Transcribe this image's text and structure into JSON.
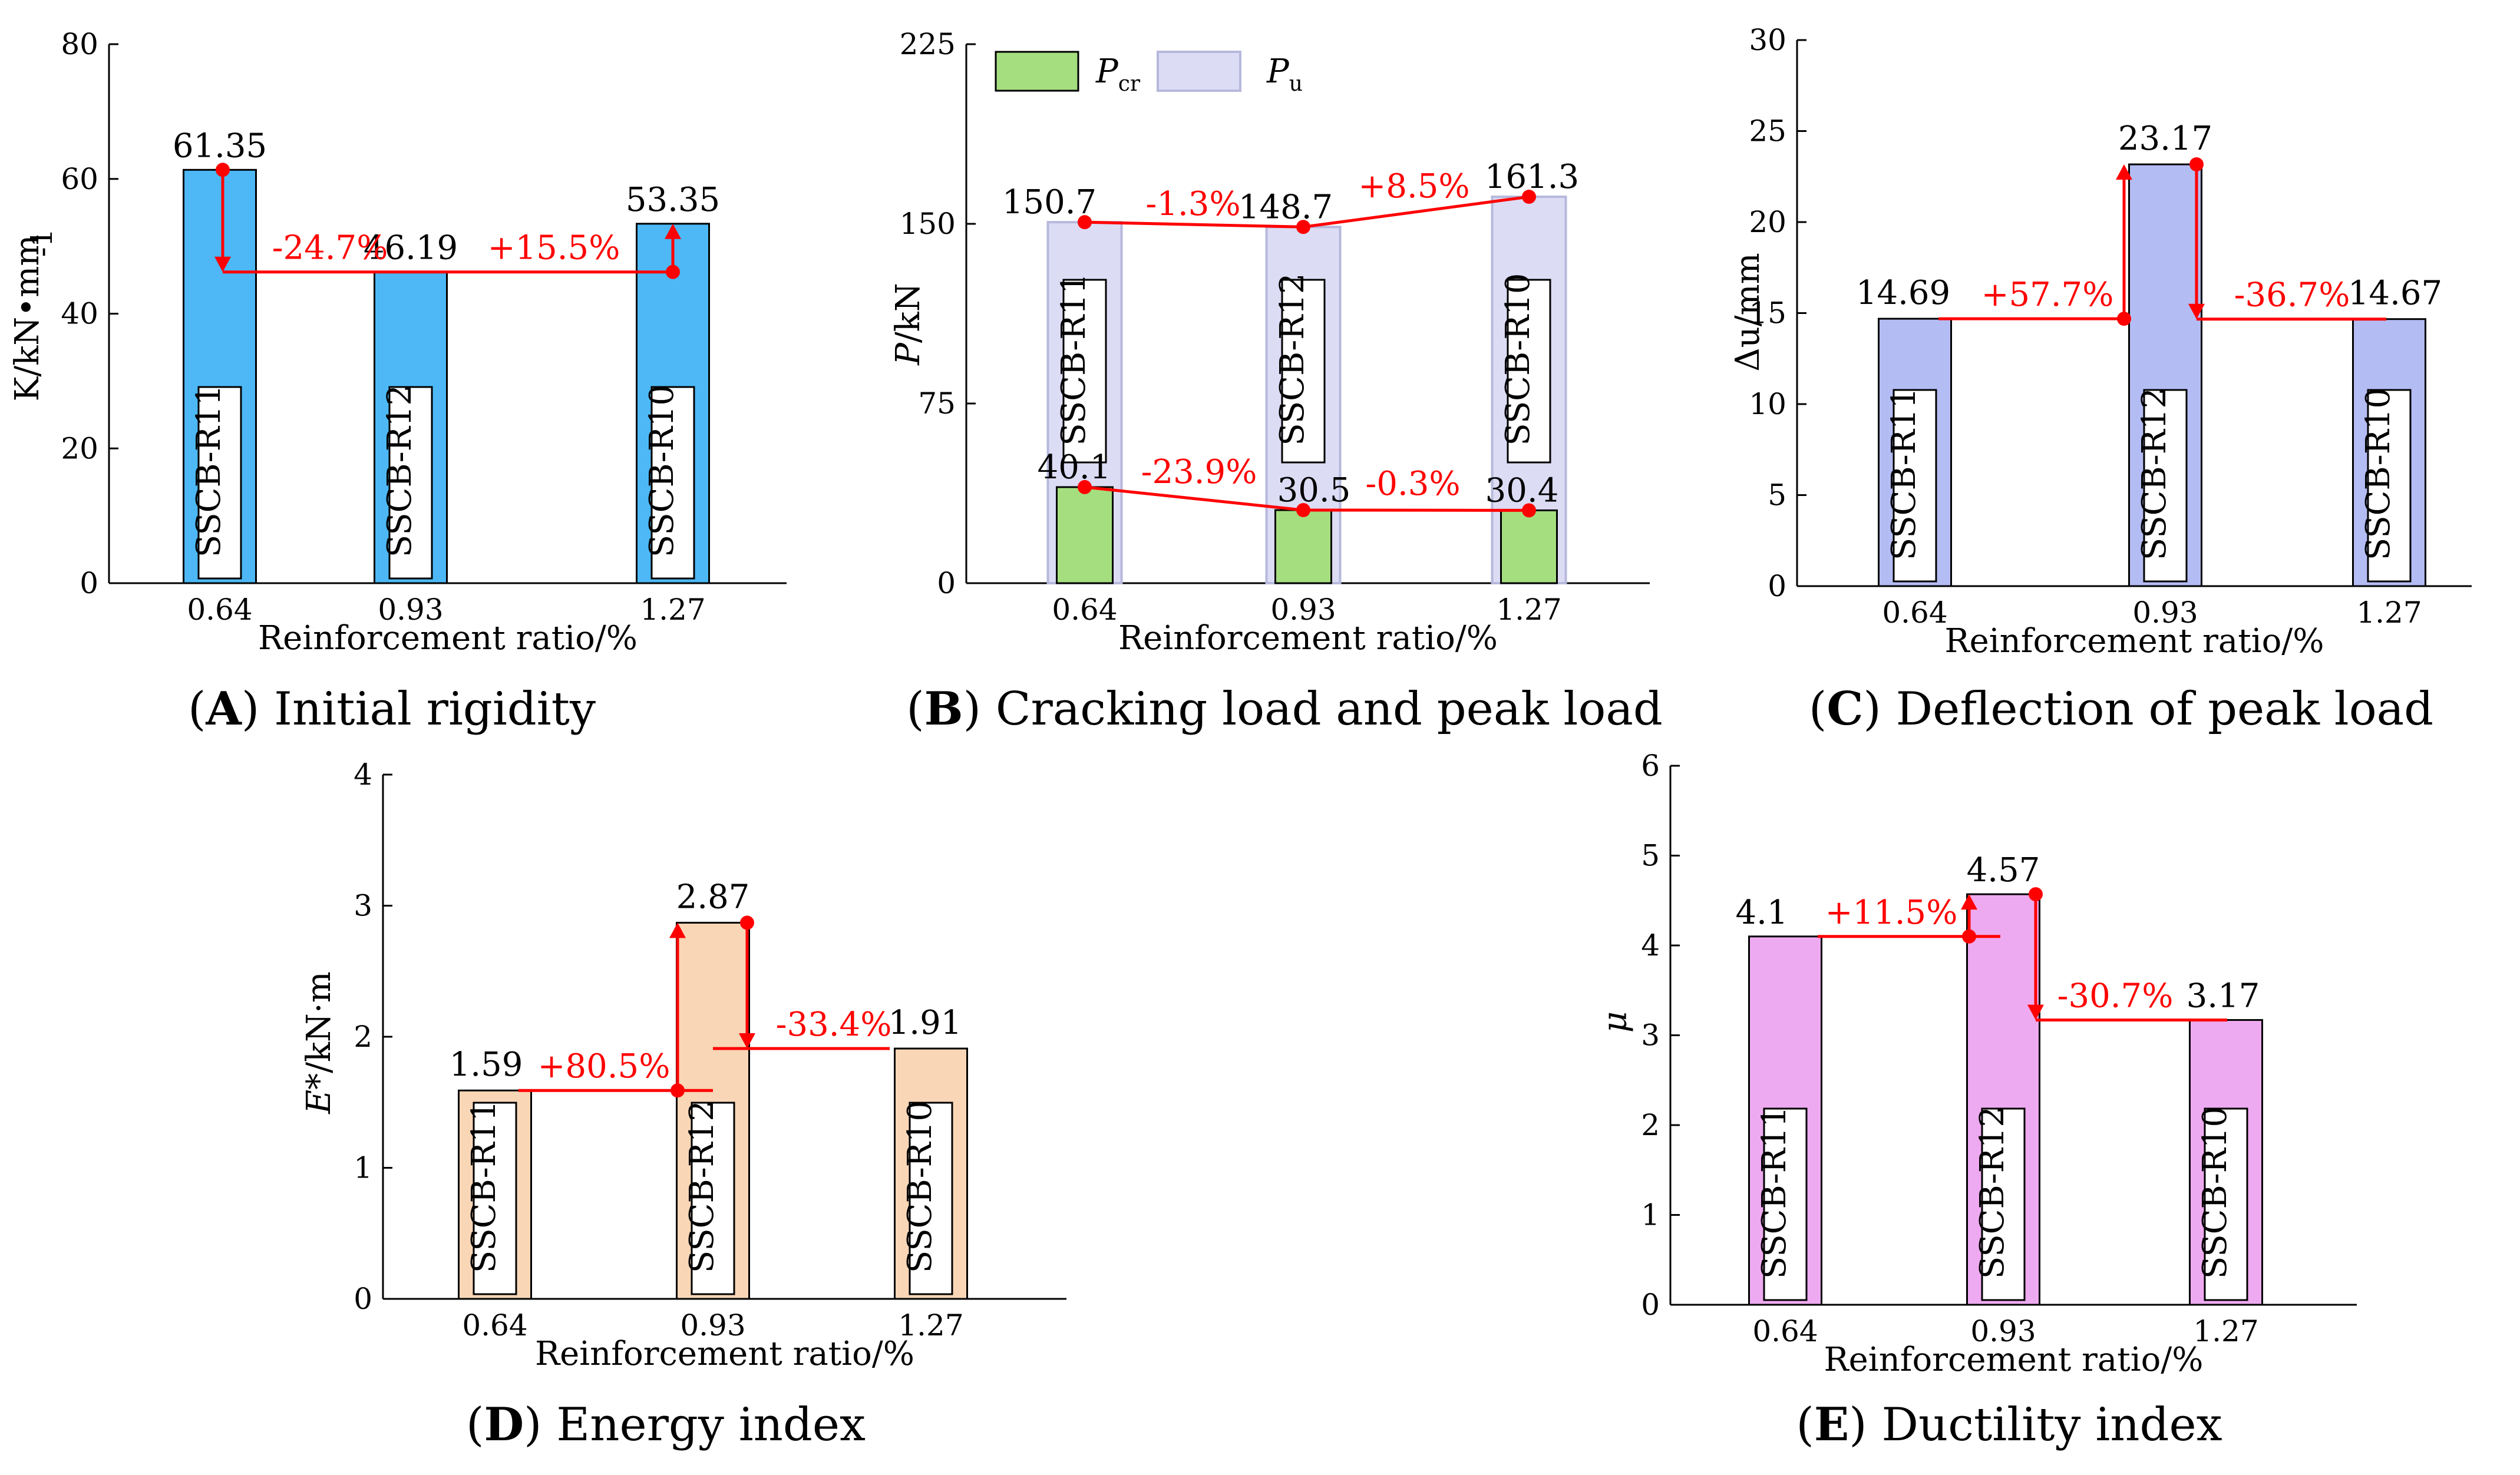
{
  "chart_data": [
    {
      "id": "A",
      "type": "bar",
      "title": "Initial rigidity",
      "caption_letter": "A",
      "xlabel": "Reinforcement ratio/%",
      "ylabel": "K/kN•mm",
      "ylabel_sup": "-1",
      "categories": [
        "0.64",
        "0.93",
        "1.27"
      ],
      "values": [
        61.35,
        46.19,
        53.35
      ],
      "value_labels": [
        "61.35",
        "46.19",
        "53.35"
      ],
      "specimens": [
        "SSCB-R11",
        "SSCB-R12",
        "SSCB-R10"
      ],
      "ylim": [
        0,
        80
      ],
      "yticks": [
        "0",
        "20",
        "40",
        "60",
        "80"
      ],
      "bar_color": "#4db8f5",
      "annotations": [
        "-24.7%",
        "+15.5%"
      ]
    },
    {
      "id": "B",
      "type": "bar",
      "title": "Cracking load and peak load",
      "caption_letter": "B",
      "xlabel": "Reinforcement ratio/%",
      "ylabel": "P/kN",
      "categories": [
        "0.64",
        "0.93",
        "1.27"
      ],
      "series": [
        {
          "name": "P",
          "subscript": "cr",
          "values": [
            40.1,
            30.5,
            30.4
          ],
          "labels": [
            "40.1",
            "30.5",
            "30.4"
          ],
          "color": "#a5de7f"
        },
        {
          "name": "P",
          "subscript": "u",
          "values": [
            150.7,
            148.7,
            161.3
          ],
          "labels": [
            "150.7",
            "148.7",
            "161.3"
          ],
          "color": "#dcdcf5"
        }
      ],
      "specimens": [
        "SSCB-R11",
        "SSCB-R12",
        "SSCB-R10"
      ],
      "ylim": [
        0,
        225
      ],
      "yticks": [
        "0",
        "75",
        "150",
        "225"
      ],
      "annotations_peak": [
        "-1.3%",
        "+8.5%"
      ],
      "annotations_crack": [
        "-23.9%",
        "-0.3%"
      ]
    },
    {
      "id": "C",
      "type": "bar",
      "title": "Deflection of peak load",
      "caption_letter": "C",
      "xlabel": "Reinforcement ratio/%",
      "ylabel": "Δu/mm",
      "categories": [
        "0.64",
        "0.93",
        "1.27"
      ],
      "values": [
        14.69,
        23.17,
        14.67
      ],
      "value_labels": [
        "14.69",
        "23.17",
        "14.67"
      ],
      "specimens": [
        "SSCB-R11",
        "SSCB-R12",
        "SSCB-R10"
      ],
      "ylim": [
        0,
        30
      ],
      "yticks": [
        "0",
        "5",
        "10",
        "15",
        "20",
        "25",
        "30"
      ],
      "bar_color": "#b4bcf4",
      "annotations": [
        "+57.7%",
        "-36.7%"
      ]
    },
    {
      "id": "D",
      "type": "bar",
      "title": "Energy index",
      "caption_letter": "D",
      "xlabel": "Reinforcement ratio/%",
      "ylabel": "E*/kN·m",
      "categories": [
        "0.64",
        "0.93",
        "1.27"
      ],
      "values": [
        1.59,
        2.87,
        1.91
      ],
      "value_labels": [
        "1.59",
        "2.87",
        "1.91"
      ],
      "specimens": [
        "SSCB-R11",
        "SSCB-R12",
        "SSCB-R10"
      ],
      "ylim": [
        0,
        4
      ],
      "yticks": [
        "0",
        "1",
        "2",
        "3",
        "4"
      ],
      "bar_color": "#f8d6b6",
      "annotations": [
        "+80.5%",
        "-33.4%"
      ]
    },
    {
      "id": "E",
      "type": "bar",
      "title": "Ductility index",
      "caption_letter": "E",
      "xlabel": "Reinforcement ratio/%",
      "ylabel": "μ",
      "categories": [
        "0.64",
        "0.93",
        "1.27"
      ],
      "values": [
        4.1,
        4.57,
        3.17
      ],
      "value_labels": [
        "4.1",
        "4.57",
        "3.17"
      ],
      "specimens": [
        "SSCB-R11",
        "SSCB-R12",
        "SSCB-R10"
      ],
      "ylim": [
        0,
        6
      ],
      "yticks": [
        "0",
        "1",
        "2",
        "3",
        "4",
        "5",
        "6"
      ],
      "bar_color": "#eeaaf0",
      "annotations": [
        "+11.5%",
        "-30.7%"
      ]
    }
  ]
}
